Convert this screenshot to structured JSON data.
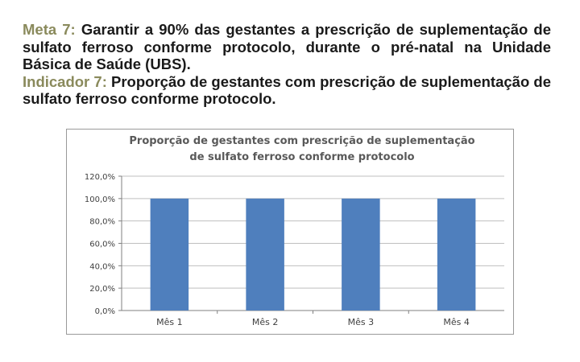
{
  "meta": {
    "label": "Meta 7:",
    "text": "Garantir a 90% das gestantes a prescrição de suplementação de sulfato ferroso conforme protocolo, durante o pré-natal na Unidade Básica de Saúde (UBS)."
  },
  "indicador": {
    "label": "Indicador 7:",
    "text": "Proporção de gestantes com prescrição de suplementação de sulfato ferroso conforme protocolo."
  },
  "colors": {
    "label": "#8a8a5c",
    "bar": "#4f7fbd",
    "grid": "#bfbfbf",
    "title": "#595959"
  },
  "chart_data": {
    "type": "bar",
    "title": [
      "Proporção de gestantes com prescrição de suplementação",
      "de sulfato ferroso conforme protocolo"
    ],
    "categories": [
      "Mês 1",
      "Mês 2",
      "Mês 3",
      "Mês 4"
    ],
    "values": [
      100,
      100,
      100,
      100
    ],
    "ylim": [
      0,
      120
    ],
    "yticks": [
      0,
      20,
      40,
      60,
      80,
      100,
      120
    ],
    "ytick_labels": [
      "0,0%",
      "20,0%",
      "40,0%",
      "60,0%",
      "80,0%",
      "100,0%",
      "120,0%"
    ],
    "grid": true,
    "legend": "none"
  }
}
